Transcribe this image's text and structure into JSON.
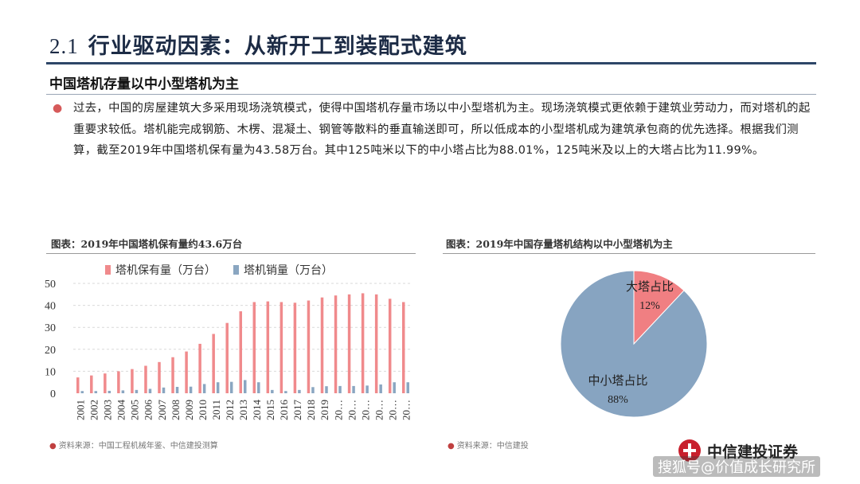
{
  "header": {
    "section_number": "2.1",
    "title": "行业驱动因素：从新开工到装配式建筑"
  },
  "subtitle": "中国塔机存量以中小型塔机为主",
  "paragraph": "过去，中国的房屋建筑大多采用现场浇筑模式，使得中国塔机存量市场以中小型塔机为主。现场浇筑模式更依赖于建筑业劳动力，而对塔机的起重要求较低。塔机能完成钢筋、木楞、混凝土、钢管等散料的垂直输送即可，所以低成本的小型塔机成为建筑承包商的优先选择。根据我们测算，截至2019年中国塔机保有量为43.58万台。其中125吨米以下的中小塔占比为88.01%，125吨米及以上的大塔占比为11.99%。",
  "left_chart": {
    "caption": "图表：2019年中国塔机保有量约43.6万台",
    "source": "资料来源：中国工程机械年鉴、中信建投测算"
  },
  "right_chart": {
    "caption": "图表：2019年中国存量塔机结构以中小型塔机为主",
    "source": "资料来源：中信建投"
  },
  "logo": {
    "name": "中信建投证券"
  },
  "watermark": "搜狐号@价值成长研究所",
  "colors": {
    "pink": "#f08a8c",
    "blue_gray": "#8aa6c1",
    "pie_blue": "#87a4c1",
    "pie_red": "#f07f82",
    "title_rule": "#2e4668"
  },
  "chart_data": [
    {
      "type": "bar",
      "categories": [
        "2001",
        "2002",
        "2003",
        "2004",
        "2005",
        "2006",
        "2007",
        "2008",
        "2009",
        "2010",
        "2011",
        "2012",
        "2013",
        "2014",
        "2015",
        "2016",
        "2017",
        "2018",
        "2019",
        "20…",
        "20…",
        "20…",
        "20…",
        "20…",
        "20…"
      ],
      "series": [
        {
          "name": "塔机保有量（万台）",
          "values": [
            7.2,
            8.1,
            9,
            10,
            11,
            12.5,
            14.2,
            16.4,
            19,
            22.5,
            27,
            32,
            37.3,
            41.5,
            41.8,
            41.5,
            41.2,
            42.2,
            43.6,
            44.5,
            45,
            45.5,
            45,
            43,
            41.5
          ]
        },
        {
          "name": "塔机销量（万台）",
          "values": [
            1,
            1,
            1.1,
            1.3,
            1.5,
            2,
            2.6,
            2.9,
            3,
            4.2,
            5,
            5.2,
            6,
            5,
            1.5,
            1,
            1.5,
            2.8,
            3.2,
            3.3,
            3.3,
            3.5,
            4,
            5,
            5
          ]
        }
      ],
      "yticks": [
        0,
        10,
        20,
        30,
        40,
        50
      ],
      "ylim": [
        0,
        50
      ],
      "legend": "top"
    },
    {
      "type": "pie",
      "slices": [
        {
          "label": "大塔占比",
          "value": 12,
          "display": "12%"
        },
        {
          "label": "中小塔占比",
          "value": 88,
          "display": "88%"
        }
      ]
    }
  ]
}
